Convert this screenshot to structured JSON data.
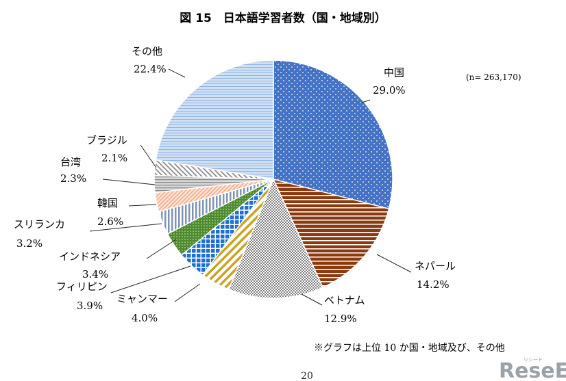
{
  "chart_data": {
    "type": "pie",
    "title": "図 15　日本語学習者数（国・地域別）",
    "sample_size_label": "(n=  263,170)",
    "note": "※グラフは上位 10 か国・地域及び、その他",
    "slices": [
      {
        "name": "中国",
        "value": 29.0,
        "value_label": "29.0%",
        "fill": "#4472c4",
        "pattern": "dots"
      },
      {
        "name": "ネパール",
        "value": 14.2,
        "value_label": "14.2%",
        "fill": "#8b3a0f",
        "pattern": "hstripes"
      },
      {
        "name": "ベトナム",
        "value": 12.9,
        "value_label": "12.9%",
        "fill": "#808080",
        "pattern": "checker"
      },
      {
        "name": "ミャンマー",
        "value": 4.0,
        "value_label": "4.0%",
        "fill": "#c9a227",
        "pattern": "diagonal"
      },
      {
        "name": "フィリピン",
        "value": 3.9,
        "value_label": "3.9%",
        "fill": "#1f6fd1",
        "pattern": "grid"
      },
      {
        "name": "インドネシア",
        "value": 3.4,
        "value_label": "3.4%",
        "fill": "#4e8a2e",
        "pattern": "dotgrid"
      },
      {
        "name": "スリランカ",
        "value": 3.2,
        "value_label": "3.2%",
        "fill": "#7f93b3",
        "pattern": "vstripes"
      },
      {
        "name": "韓国",
        "value": 2.6,
        "value_label": "2.6%",
        "fill": "#f4a582",
        "pattern": "fine"
      },
      {
        "name": "台湾",
        "value": 2.3,
        "value_label": "2.3%",
        "fill": "#9a9a9a",
        "pattern": "hstripes-light"
      },
      {
        "name": "ブラジル",
        "value": 2.1,
        "value_label": "2.1%",
        "fill": "#9a9a9a",
        "pattern": "diagonal-gray"
      },
      {
        "name": "その他",
        "value": 22.4,
        "value_label": "22.4%",
        "fill": "#a9c8ea",
        "pattern": "hlines"
      }
    ]
  },
  "page_number": "20",
  "watermark": {
    "text": "ReseEd",
    "small": "リシード"
  }
}
